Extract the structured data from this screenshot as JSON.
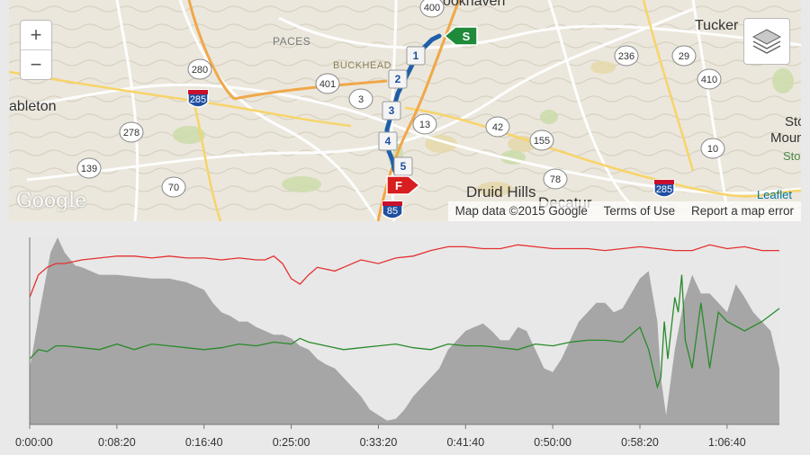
{
  "map": {
    "places": [
      {
        "text": "PACES"
      },
      {
        "text": "BUCKHEAD"
      },
      {
        "text": "Tucker"
      },
      {
        "text": "ableton"
      },
      {
        "text": "Stor"
      },
      {
        "text": "Moun"
      },
      {
        "text": "Stor"
      },
      {
        "text": "Druid Hills"
      },
      {
        "text": "Decatur"
      },
      {
        "text": "Brookhaven"
      }
    ],
    "shields": [
      "400",
      "280",
      "285",
      "401",
      "3",
      "13",
      "236",
      "29",
      "410",
      "278",
      "42",
      "155",
      "10",
      "139",
      "70",
      "78",
      "285",
      "85"
    ],
    "markers": {
      "start": "S",
      "finish": "F",
      "splits": [
        "1",
        "2",
        "3",
        "4",
        "5"
      ]
    },
    "zoom": {
      "in": "+",
      "out": "−"
    },
    "google_logo": "Google",
    "attribution": {
      "leaflet": "Leaflet",
      "data": "Map data ©2015 Google",
      "terms": "Terms of Use",
      "report": "Report a map error"
    },
    "icons": {
      "layers": "layers-icon"
    }
  },
  "chart_data": {
    "type": "area",
    "x_ticks": [
      "0:00:00",
      "0:08:20",
      "0:16:40",
      "0:25:00",
      "0:33:20",
      "0:41:40",
      "0:50:00",
      "0:58:20",
      "1:06:40"
    ],
    "x_tick_seconds": [
      0,
      500,
      1000,
      1500,
      2000,
      2500,
      3000,
      3500,
      4000
    ],
    "xlim_seconds": [
      0,
      4300
    ],
    "ylim": [
      0,
      100
    ],
    "grid": false,
    "series": [
      {
        "role": "elevation area",
        "color": "#a6a6a6",
        "x_seconds": [
          0,
          60,
          120,
          160,
          200,
          260,
          300,
          400,
          500,
          600,
          700,
          800,
          900,
          950,
          1000,
          1050,
          1100,
          1150,
          1200,
          1250,
          1300,
          1350,
          1400,
          1450,
          1500,
          1550,
          1600,
          1650,
          1700,
          1750,
          1800,
          1850,
          1900,
          1950,
          2000,
          2050,
          2100,
          2150,
          2200,
          2250,
          2300,
          2350,
          2400,
          2450,
          2500,
          2550,
          2600,
          2650,
          2700,
          2750,
          2800,
          2850,
          2900,
          2950,
          3000,
          3050,
          3100,
          3150,
          3200,
          3250,
          3300,
          3350,
          3400,
          3450,
          3500,
          3550,
          3600,
          3620,
          3650,
          3700,
          3750,
          3800,
          3850,
          3900,
          3950,
          4000,
          4050,
          4100,
          4150,
          4200,
          4250,
          4300
        ],
        "values": [
          30,
          62,
          92,
          100,
          92,
          85,
          84,
          80,
          80,
          79,
          78,
          78,
          76,
          74,
          72,
          65,
          60,
          58,
          55,
          55,
          52,
          50,
          48,
          48,
          46,
          42,
          40,
          35,
          32,
          30,
          25,
          20,
          15,
          8,
          5,
          2,
          3,
          8,
          15,
          20,
          25,
          30,
          40,
          45,
          50,
          52,
          54,
          50,
          45,
          45,
          52,
          50,
          40,
          30,
          28,
          35,
          45,
          55,
          60,
          65,
          65,
          60,
          62,
          70,
          78,
          82,
          55,
          25,
          5,
          40,
          65,
          80,
          70,
          70,
          65,
          60,
          75,
          68,
          60,
          55,
          50,
          30
        ]
      },
      {
        "role": "red line",
        "color": "#e53030",
        "x_seconds": [
          0,
          50,
          100,
          150,
          200,
          300,
          400,
          500,
          600,
          700,
          800,
          900,
          1000,
          1100,
          1200,
          1300,
          1350,
          1400,
          1450,
          1500,
          1550,
          1600,
          1650,
          1700,
          1750,
          1800,
          1900,
          2000,
          2100,
          2200,
          2300,
          2400,
          2500,
          2600,
          2700,
          2800,
          2900,
          3000,
          3100,
          3200,
          3300,
          3400,
          3500,
          3600,
          3700,
          3800,
          3900,
          4000,
          4100,
          4200,
          4300
        ],
        "values": [
          68,
          80,
          84,
          86,
          86,
          88,
          89,
          90,
          90,
          89,
          90,
          89,
          89,
          88,
          89,
          88,
          88,
          90,
          86,
          78,
          75,
          80,
          84,
          83,
          82,
          84,
          88,
          86,
          89,
          90,
          93,
          95,
          95,
          94,
          94,
          96,
          95,
          94,
          94,
          94,
          93,
          94,
          95,
          94,
          93,
          93,
          96,
          94,
          95,
          93,
          93
        ]
      },
      {
        "role": "green line",
        "color": "#2a8a2a",
        "x_seconds": [
          0,
          50,
          100,
          150,
          200,
          300,
          400,
          500,
          600,
          700,
          800,
          900,
          1000,
          1100,
          1200,
          1300,
          1400,
          1500,
          1550,
          1600,
          1700,
          1800,
          1900,
          2000,
          2100,
          2200,
          2300,
          2400,
          2500,
          2600,
          2700,
          2800,
          2900,
          3000,
          3100,
          3200,
          3300,
          3400,
          3500,
          3550,
          3600,
          3620,
          3640,
          3660,
          3700,
          3720,
          3740,
          3760,
          3800,
          3850,
          3900,
          3950,
          4000,
          4100,
          4200,
          4300
        ],
        "values": [
          35,
          40,
          39,
          42,
          42,
          41,
          40,
          43,
          40,
          43,
          42,
          41,
          40,
          41,
          43,
          42,
          44,
          43,
          46,
          44,
          42,
          40,
          41,
          42,
          43,
          41,
          40,
          43,
          42,
          42,
          41,
          40,
          43,
          42,
          44,
          45,
          45,
          44,
          52,
          40,
          20,
          25,
          55,
          35,
          68,
          60,
          80,
          45,
          30,
          65,
          30,
          60,
          55,
          50,
          55,
          62
        ]
      }
    ]
  }
}
